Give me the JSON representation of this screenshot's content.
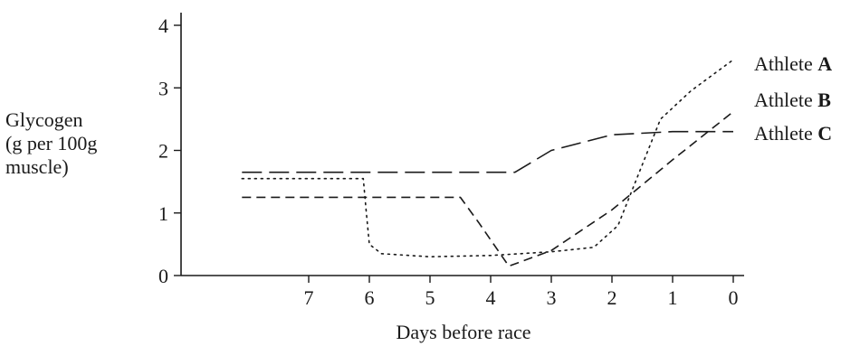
{
  "chart_data": {
    "type": "line",
    "xlabel": "Days before race",
    "ylabel": [
      "Glycogen",
      "(g per 100g",
      "muscle)"
    ],
    "x_ticks": [
      7,
      6,
      5,
      4,
      3,
      2,
      1,
      0
    ],
    "y_ticks": [
      0,
      1,
      2,
      3,
      4
    ],
    "xlim": [
      8.1,
      -0.05
    ],
    "ylim": [
      0,
      4.3
    ],
    "grid": false,
    "legend_placement": "right, at line ends",
    "series": [
      {
        "name_prefix": "Athlete ",
        "name_bold": "A",
        "line_style": "dotted",
        "points": [
          [
            8.1,
            1.55
          ],
          [
            6.1,
            1.55
          ],
          [
            6.05,
            1.0
          ],
          [
            6.0,
            0.5
          ],
          [
            5.8,
            0.35
          ],
          [
            5.0,
            0.3
          ],
          [
            4.0,
            0.32
          ],
          [
            3.0,
            0.38
          ],
          [
            2.3,
            0.45
          ],
          [
            1.9,
            0.8
          ],
          [
            1.2,
            2.5
          ],
          [
            0.7,
            2.95
          ],
          [
            0.0,
            3.45
          ]
        ]
      },
      {
        "name_prefix": "Athlete ",
        "name_bold": "B",
        "line_style": "dashed",
        "points": [
          [
            8.1,
            1.25
          ],
          [
            4.5,
            1.25
          ],
          [
            4.2,
            0.85
          ],
          [
            3.7,
            0.15
          ],
          [
            3.0,
            0.4
          ],
          [
            2.0,
            1.05
          ],
          [
            1.0,
            1.85
          ],
          [
            0.0,
            2.62
          ]
        ]
      },
      {
        "name_prefix": "Athlete ",
        "name_bold": "C",
        "line_style": "long-dashed",
        "points": [
          [
            8.1,
            1.65
          ],
          [
            3.6,
            1.65
          ],
          [
            3.0,
            2.0
          ],
          [
            2.0,
            2.25
          ],
          [
            1.0,
            2.3
          ],
          [
            0.0,
            2.3
          ]
        ]
      }
    ]
  }
}
